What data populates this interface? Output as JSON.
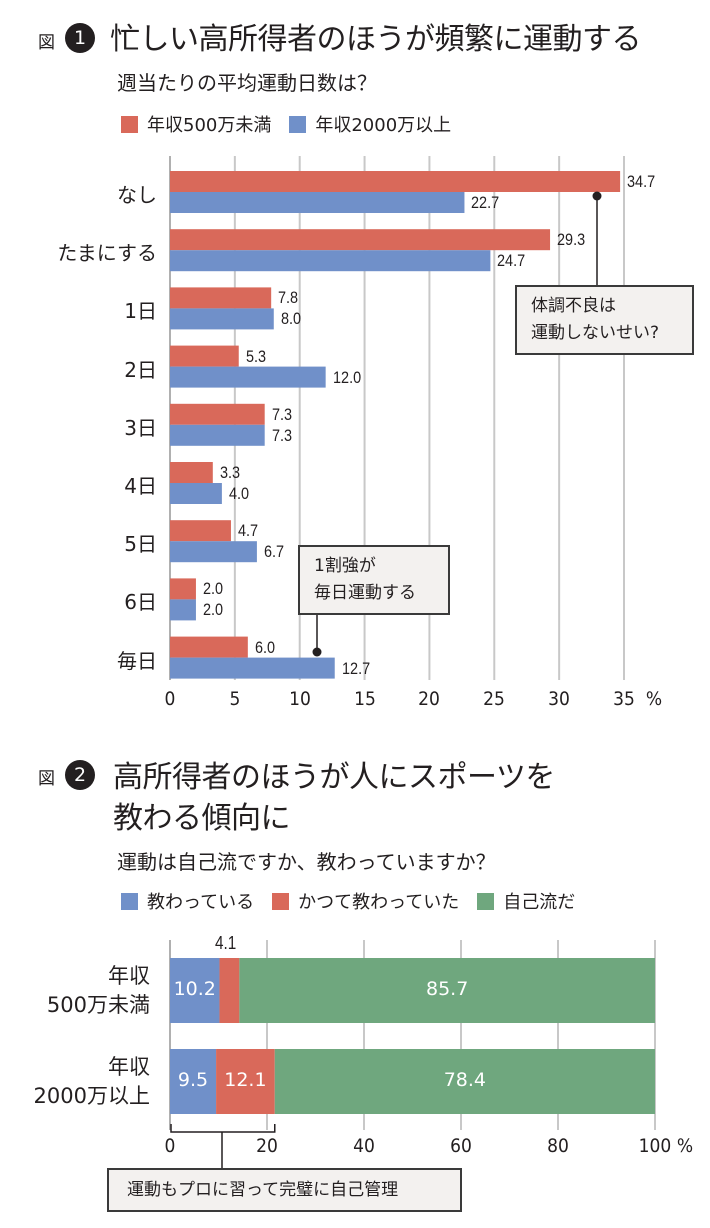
{
  "figure1": {
    "tag": "図",
    "number": "1",
    "title": "忙しい高所得者のほうが頻繁に運動する",
    "subtitle": "週当たりの平均運動日数は？",
    "callouts": [
      "体調不良は\n運動しないせい?",
      "1割強が\n毎日運動する"
    ],
    "callout_lines": [
      [
        "体調不良は",
        "運動しないせい?"
      ],
      [
        "1割強が",
        "毎日運動する"
      ]
    ]
  },
  "figure2": {
    "tag": "図",
    "number": "2",
    "title_lines": [
      "高所得者のほうが人にスポーツを",
      "教わる傾向に"
    ],
    "subtitle": "運動は自己流ですか、教わっていますか？",
    "callout": "運動もプロに習って完璧に自己管理"
  },
  "colors": {
    "red": "#d9695a",
    "blue": "#7090c9",
    "green": "#6fa77e",
    "grid": "#c8c8c8",
    "text": "#231f20"
  },
  "chart_data": [
    {
      "type": "bar",
      "orientation": "horizontal",
      "title": "忙しい高所得者のほうが頻繁に運動する",
      "subtitle": "週当たりの平均運動日数は？",
      "categories": [
        "なし",
        "たまにする",
        "1日",
        "2日",
        "3日",
        "4日",
        "5日",
        "6日",
        "毎日"
      ],
      "series": [
        {
          "name": "年収500万未満",
          "color": "#d9695a",
          "values": [
            34.7,
            29.3,
            7.8,
            5.3,
            7.3,
            3.3,
            4.7,
            2.0,
            6.0
          ],
          "labels": [
            "34.7",
            "29.3",
            "7.8",
            "5.3",
            "7.3",
            "3.3",
            "4.7",
            "2.0",
            "6.0"
          ]
        },
        {
          "name": "年収2000万以上",
          "color": "#7090c9",
          "values": [
            22.7,
            24.7,
            8.0,
            12.0,
            7.3,
            4.0,
            6.7,
            2.0,
            12.7
          ],
          "labels": [
            "22.7",
            "24.7",
            "8.0",
            "12.0",
            "7.3",
            "4.0",
            "6.7",
            "2.0",
            "12.7"
          ]
        }
      ],
      "xlim": [
        0,
        35
      ],
      "xticks": [
        "0",
        "5",
        "10",
        "15",
        "20",
        "25",
        "30",
        "35"
      ],
      "xtick_values": [
        0,
        5,
        10,
        15,
        20,
        25,
        30,
        35
      ],
      "unit": "%",
      "grid": true,
      "legend": "top-left",
      "annotations": [
        "体調不良は\n運動しないせい?",
        "1割強が\n毎日運動する"
      ]
    },
    {
      "type": "bar",
      "orientation": "horizontal",
      "stacked": true,
      "title": "高所得者のほうが人にスポーツを教わる傾向に",
      "subtitle": "運動は自己流ですか、教わっていますか？",
      "categories": [
        "年収\n500万未満",
        "年収\n2000万以上"
      ],
      "category_lines": [
        [
          "年収",
          "500万未満"
        ],
        [
          "年収",
          "2000万以上"
        ]
      ],
      "series": [
        {
          "name": "教わっている",
          "color": "#7090c9",
          "values": [
            10.2,
            9.5
          ],
          "labels": [
            "10.2",
            "9.5"
          ]
        },
        {
          "name": "かつて教わっていた",
          "color": "#d9695a",
          "values": [
            4.1,
            12.1
          ],
          "labels": [
            "4.1",
            "12.1"
          ]
        },
        {
          "name": "自己流だ",
          "color": "#6fa77e",
          "values": [
            85.7,
            78.4
          ],
          "labels": [
            "85.7",
            "78.4"
          ]
        }
      ],
      "xlim": [
        0,
        100
      ],
      "xticks": [
        "0",
        "20",
        "40",
        "60",
        "80",
        "100"
      ],
      "xtick_values": [
        0,
        20,
        40,
        60,
        80,
        100
      ],
      "unit": "%",
      "grid": true,
      "legend": "top-left",
      "annotations": [
        "運動もプロに習って完璧に自己管理"
      ]
    }
  ]
}
